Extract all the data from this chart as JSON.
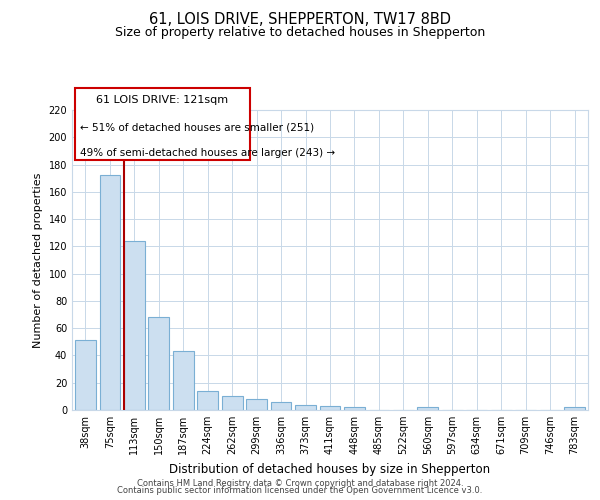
{
  "title": "61, LOIS DRIVE, SHEPPERTON, TW17 8BD",
  "subtitle": "Size of property relative to detached houses in Shepperton",
  "xlabel": "Distribution of detached houses by size in Shepperton",
  "ylabel": "Number of detached properties",
  "categories": [
    "38sqm",
    "75sqm",
    "113sqm",
    "150sqm",
    "187sqm",
    "224sqm",
    "262sqm",
    "299sqm",
    "336sqm",
    "373sqm",
    "411sqm",
    "448sqm",
    "485sqm",
    "522sqm",
    "560sqm",
    "597sqm",
    "634sqm",
    "671sqm",
    "709sqm",
    "746sqm",
    "783sqm"
  ],
  "values": [
    51,
    172,
    124,
    68,
    43,
    14,
    10,
    8,
    6,
    4,
    3,
    2,
    0,
    0,
    2,
    0,
    0,
    0,
    0,
    0,
    2
  ],
  "bar_color": "#ccdff0",
  "bar_edge_color": "#7aafd4",
  "bar_edge_width": 0.8,
  "red_line_index": 2,
  "ylim": [
    0,
    220
  ],
  "yticks": [
    0,
    20,
    40,
    60,
    80,
    100,
    120,
    140,
    160,
    180,
    200,
    220
  ],
  "annotation_title": "61 LOIS DRIVE: 121sqm",
  "annotation_line1": "← 51% of detached houses are smaller (251)",
  "annotation_line2": "49% of semi-detached houses are larger (243) →",
  "annotation_box_color": "#ffffff",
  "annotation_box_edge": "#cc0000",
  "footer_line1": "Contains HM Land Registry data © Crown copyright and database right 2024.",
  "footer_line2": "Contains public sector information licensed under the Open Government Licence v3.0.",
  "background_color": "#ffffff",
  "grid_color": "#c8d8e8",
  "title_fontsize": 10.5,
  "subtitle_fontsize": 9,
  "xlabel_fontsize": 8.5,
  "ylabel_fontsize": 8,
  "tick_fontsize": 7,
  "footer_fontsize": 6,
  "ann_title_fontsize": 8,
  "ann_body_fontsize": 7.5
}
